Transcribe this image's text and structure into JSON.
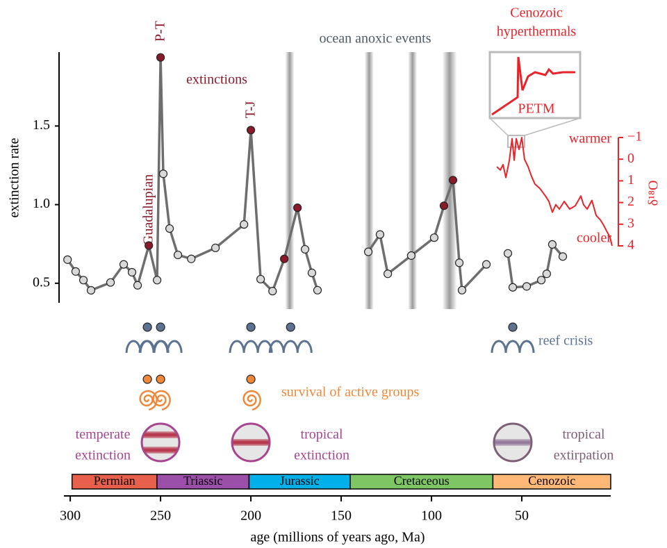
{
  "chart_data": {
    "type": "line",
    "xlabel": "age (millions of years ago, Ma)",
    "ylabel": "extinction rate",
    "xlim": [
      303.5,
      0
    ],
    "xticks": [
      300,
      250,
      200,
      150,
      100,
      50
    ],
    "ylim": [
      0.38,
      1.97
    ],
    "yticks": [
      0.5,
      {
        "value": 1,
        "label": "1.0"
      },
      1.5
    ],
    "x": [
      301.5,
      297,
      292.7,
      288.5,
      277.7,
      270.4,
      265.8,
      262.7,
      256.5,
      251.9,
      250,
      248.5,
      245,
      240.4,
      233,
      219.6,
      203.8,
      200,
      194.6,
      188,
      181.5,
      174.2,
      170,
      166.2,
      163.1,
      null,
      135,
      128.5,
      124.2,
      111.2,
      98.5,
      93.1,
      88.1,
      84.6,
      83.1,
      69.6,
      null,
      57.7,
      55,
      47.3,
      39.2,
      36.2,
      33.1,
      27.3
    ],
    "series": [
      {
        "color": "#6e6e6e",
        "values": [
          0.65,
          0.575,
          0.52,
          0.455,
          0.505,
          0.62,
          0.57,
          0.487,
          0.74,
          0.52,
          1.936,
          1.196,
          0.848,
          0.68,
          0.655,
          0.725,
          0.874,
          1.474,
          0.526,
          0.45,
          0.655,
          0.98,
          0.716,
          0.566,
          0.456,
          null,
          0.7,
          0.81,
          0.56,
          0.676,
          0.79,
          0.993,
          1.156,
          0.63,
          0.456,
          0.62,
          null,
          0.69,
          0.474,
          0.48,
          0.52,
          0.56,
          0.747,
          0.67
        ],
        "marker_colors": [
          "#d9d9d9",
          "#d9d9d9",
          "#d9d9d9",
          "#d9d9d9",
          "#d9d9d9",
          "#d9d9d9",
          "#d9d9d9",
          "#d9d9d9",
          "#8b1a2b",
          "#d9d9d9",
          "#8b1a2b",
          "#d9d9d9",
          "#d9d9d9",
          "#d9d9d9",
          "#d9d9d9",
          "#d9d9d9",
          "#d9d9d9",
          "#8b1a2b",
          "#d9d9d9",
          "#d9d9d9",
          "#8b1a2b",
          "#8b1a2b",
          "#d9d9d9",
          "#d9d9d9",
          "#d9d9d9",
          null,
          "#d9d9d9",
          "#d9d9d9",
          "#d9d9d9",
          "#d9d9d9",
          "#d9d9d9",
          "#8b1a2b",
          "#8b1a2b",
          "#d9d9d9",
          "#d9d9d9",
          "#d9d9d9",
          null,
          "#d9d9d9",
          "#d9d9d9",
          "#d9d9d9",
          "#d9d9d9",
          "#d9d9d9",
          "#d9d9d9",
          "#d9d9d9"
        ]
      },
      {
        "axis": "y2",
        "color": "#e8232a",
        "x": [
          63.8,
          61.9,
          60.4,
          58.8,
          56.9,
          55.4,
          54.2,
          53.1,
          51.5,
          50,
          48.5,
          46.5,
          44.6,
          42.7,
          40,
          36.9,
          35,
          33.1,
          31.2,
          29.2,
          26.5,
          23.5,
          20.4,
          17.3,
          15.8,
          13.8,
          11.2,
          8.8,
          6.5,
          5,
          3.1,
          1.2,
          0
        ],
        "values": [
          0.35,
          0.5,
          0.25,
          0.85,
          0.05,
          -0.95,
          0.05,
          -0.95,
          -0.45,
          -1,
          0,
          0.35,
          0.8,
          1.15,
          1.35,
          1.7,
          1.95,
          2.45,
          2.1,
          2.3,
          1.95,
          2.3,
          2.15,
          1.7,
          2.1,
          2.3,
          1.9,
          2.6,
          2.8,
          3.0,
          3.3,
          3.6,
          4
        ]
      }
    ],
    "annotations": [
      "Guadalupian",
      "P-T",
      "T-J",
      "extinctions"
    ],
    "shaded_bands": {
      "label": "ocean anoxic events",
      "color": "#9a9a9a",
      "ranges": [
        [
          181,
          176
        ],
        [
          137,
          132
        ],
        [
          113,
          108
        ],
        [
          94,
          86
        ]
      ]
    },
    "y2label": "δ¹⁸O",
    "y2lim": [
      4,
      -1
    ],
    "y2ticks": [
      {
        "value": -1,
        "label": "−1"
      },
      0,
      1,
      2,
      3,
      4
    ],
    "y2_notes": [
      "warmer",
      "cooler"
    ],
    "inset": {
      "title": [
        "Cenozoic",
        "hyperthermals"
      ],
      "label": "PETM"
    },
    "event_rows": [
      {
        "label": "reef crisis",
        "color": "#5b7391",
        "ages": [
          257.3,
          250,
          200,
          178,
          55
        ]
      },
      {
        "label": "survival of active groups",
        "color": "#f0883a",
        "ages": [
          257.3,
          250,
          200
        ]
      }
    ],
    "extinction_zones": [
      {
        "label": [
          "temperate",
          "extinction"
        ],
        "age": 250,
        "color": "#a8458f",
        "band_color": "#b2283c"
      },
      {
        "label": [
          "tropical",
          "extinction"
        ],
        "age": 200,
        "color": "#a8458f",
        "band_color": "#b2283c"
      },
      {
        "label": [
          "tropical",
          "extirpation"
        ],
        "age": 55,
        "color": "#7d5f78",
        "band_color": "#8d6f94"
      }
    ],
    "periods": [
      {
        "name": "Permian",
        "start": 299,
        "end": 252,
        "color": "#e8604c"
      },
      {
        "name": "Triassic",
        "start": 252,
        "end": 201,
        "color": "#9b4fa8"
      },
      {
        "name": "Jurassic",
        "start": 201,
        "end": 145,
        "color": "#00b0e8"
      },
      {
        "name": "Cretaceous",
        "start": 145,
        "end": 66,
        "color": "#7ec664"
      },
      {
        "name": "Cenozoic",
        "start": 66,
        "end": 0,
        "color": "#ffb878"
      }
    ]
  }
}
